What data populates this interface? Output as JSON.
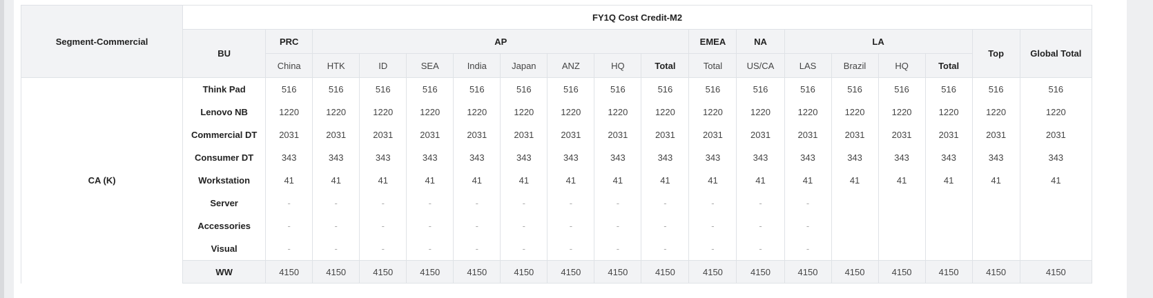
{
  "table": {
    "title": "FY1Q Cost Credit-M2",
    "segment_label": "Segment-Commercial",
    "bu_label": "BU",
    "segment_name": "CA (K)",
    "groups": [
      {
        "name": "PRC"
      },
      {
        "name": "AP"
      },
      {
        "name": "EMEA"
      },
      {
        "name": "NA"
      },
      {
        "name": "LA"
      },
      {
        "name": "Top"
      },
      {
        "name": "Global Total"
      }
    ],
    "subheaders": [
      "China",
      "HTK",
      "ID",
      "SEA",
      "India",
      "Japan",
      "ANZ",
      "HQ",
      "Total",
      "Total",
      "US/CA",
      "LAS",
      "Brazil",
      "HQ",
      "Total"
    ],
    "rows": [
      {
        "label": "Think Pad",
        "values": [
          "516",
          "516",
          "516",
          "516",
          "516",
          "516",
          "516",
          "516",
          "516",
          "516",
          "516",
          "516",
          "516",
          "516",
          "516",
          "516",
          "516"
        ]
      },
      {
        "label": "Lenovo NB",
        "values": [
          "1220",
          "1220",
          "1220",
          "1220",
          "1220",
          "1220",
          "1220",
          "1220",
          "1220",
          "1220",
          "1220",
          "1220",
          "1220",
          "1220",
          "1220",
          "1220",
          "1220"
        ]
      },
      {
        "label": "Commercial DT",
        "values": [
          "2031",
          "2031",
          "2031",
          "2031",
          "2031",
          "2031",
          "2031",
          "2031",
          "2031",
          "2031",
          "2031",
          "2031",
          "2031",
          "2031",
          "2031",
          "2031",
          "2031"
        ]
      },
      {
        "label": "Consumer DT",
        "values": [
          "343",
          "343",
          "343",
          "343",
          "343",
          "343",
          "343",
          "343",
          "343",
          "343",
          "343",
          "343",
          "343",
          "343",
          "343",
          "343",
          "343"
        ]
      },
      {
        "label": "Workstation",
        "values": [
          "41",
          "41",
          "41",
          "41",
          "41",
          "41",
          "41",
          "41",
          "41",
          "41",
          "41",
          "41",
          "41",
          "41",
          "41",
          "41",
          "41"
        ]
      },
      {
        "label": "Server",
        "values": [
          "-",
          "-",
          "-",
          "-",
          "-",
          "-",
          "-",
          "-",
          "-",
          "-",
          "-",
          "-",
          "",
          "",
          "",
          "",
          ""
        ]
      },
      {
        "label": "Accessories",
        "values": [
          "-",
          "-",
          "-",
          "-",
          "-",
          "-",
          "-",
          "-",
          "-",
          "-",
          "-",
          "-",
          "",
          "",
          "",
          "",
          ""
        ]
      },
      {
        "label": "Visual",
        "values": [
          "-",
          "-",
          "-",
          "-",
          "-",
          "-",
          "-",
          "-",
          "-",
          "-",
          "-",
          "-",
          "",
          "",
          "",
          "",
          ""
        ]
      }
    ],
    "total_row": {
      "label": "WW",
      "values": [
        "4150",
        "4150",
        "4150",
        "4150",
        "4150",
        "4150",
        "4150",
        "4150",
        "4150",
        "4150",
        "4150",
        "4150",
        "4150",
        "4150",
        "4150",
        "4150",
        "4150"
      ]
    }
  }
}
